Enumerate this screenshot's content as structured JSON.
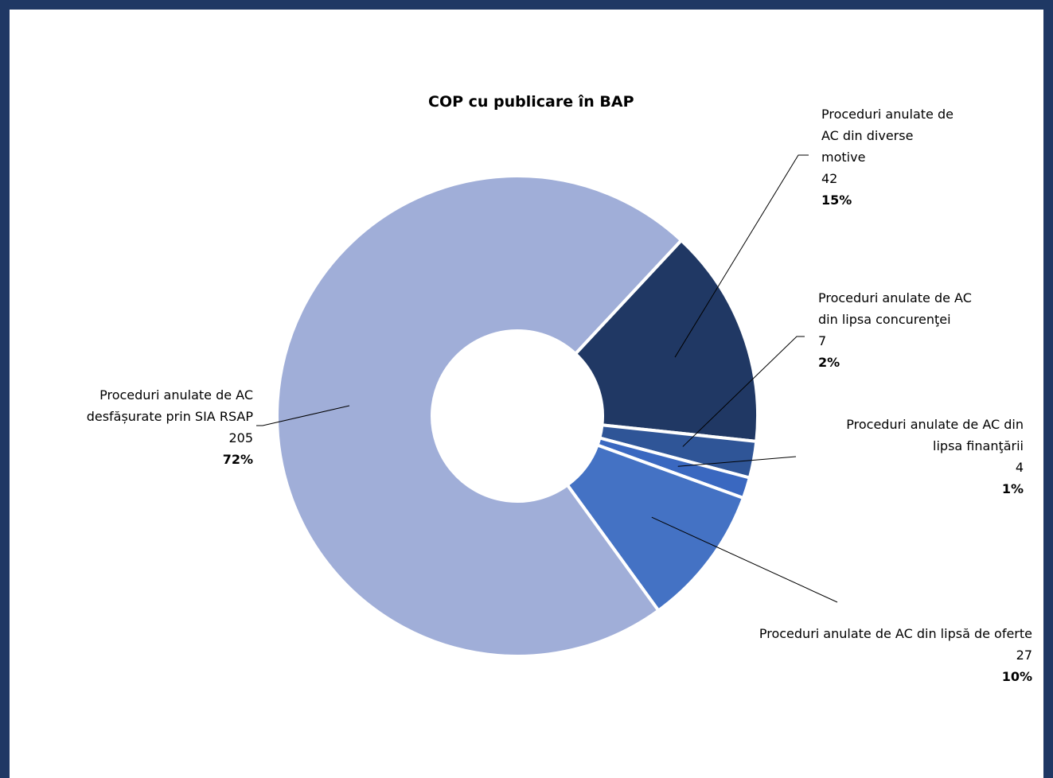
{
  "chart_data": {
    "type": "pie",
    "title": "COP cu publicare în BAP",
    "slices": [
      {
        "label_lines": [
          "Proceduri anulate de",
          "AC din diverse",
          "motive"
        ],
        "value": 42,
        "percent_label": "15%",
        "color": "#203864"
      },
      {
        "label_lines": [
          "Proceduri anulate de AC",
          "din lipsa concurenţei"
        ],
        "value": 7,
        "percent_label": "2%",
        "color": "#2f5597"
      },
      {
        "label_lines": [
          "Proceduri anulate de AC din",
          "lipsa finanţării"
        ],
        "value": 4,
        "percent_label": "1%",
        "color": "#3a68c0"
      },
      {
        "label_lines": [
          "Proceduri anulate de AC din lipsă de oferte"
        ],
        "value": 27,
        "percent_label": "10%",
        "color": "#4472c4"
      },
      {
        "label_lines": [
          "Proceduri anulate de AC",
          "desfășurate prin SIA RSAP"
        ],
        "value": 205,
        "percent_label": "72%",
        "color": "#a0aed8"
      }
    ],
    "start_angle_deg": 43,
    "legend": "none",
    "frame_color": "#1f3864"
  }
}
